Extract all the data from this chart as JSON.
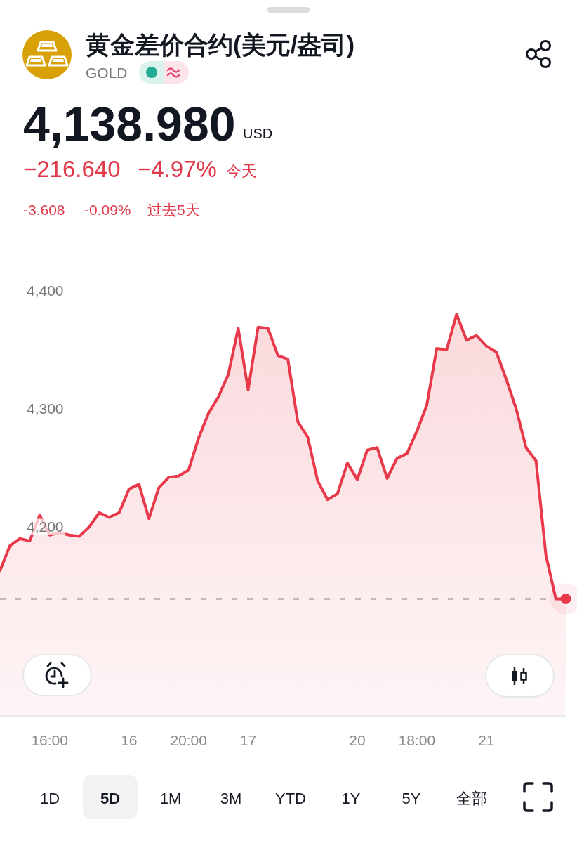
{
  "chart_data": {
    "type": "area",
    "title": "黄金差价合约(美元/盎司)",
    "subtitle": "GOLD",
    "annotations": [
      "4,138.980",
      "USD",
      "−216.640",
      "−4.97%",
      "今天",
      "-3.608",
      "-0.09%",
      "过去5天",
      "1D",
      "5D",
      "1M",
      "3M",
      "YTD",
      "1Y",
      "5Y",
      "全部"
    ],
    "categories": [
      null,
      null,
      null,
      null,
      null,
      "16:00",
      null,
      null,
      null,
      null,
      null,
      null,
      null,
      "16",
      null,
      null,
      null,
      null,
      null,
      "20:00",
      null,
      null,
      null,
      null,
      null,
      "17",
      null,
      null,
      null,
      null,
      null,
      null,
      null,
      null,
      null,
      null,
      "20",
      null,
      null,
      null,
      null,
      null,
      "18:00",
      null,
      null,
      null,
      null,
      null,
      null,
      "21",
      null,
      null,
      null,
      null,
      null,
      null,
      null,
      null
    ],
    "values": [
      4163,
      4184,
      4190,
      4188,
      4210,
      4193,
      4195,
      4193,
      4192,
      4200,
      4212,
      4208,
      4212,
      4232,
      4236,
      4207,
      4233,
      4242,
      4243,
      4248,
      4275,
      4296,
      4310,
      4329,
      4368,
      4316,
      4369,
      4368,
      4345,
      4342,
      4289,
      4276,
      4239,
      4223,
      4228,
      4254,
      4240,
      4265,
      4267,
      4241,
      4258,
      4262,
      4281,
      4303,
      4351,
      4350,
      4380,
      4358,
      4362,
      4353,
      4348,
      4325,
      4300,
      4267,
      4256,
      4176,
      4139,
      4139
    ],
    "color": "#e8394b",
    "ylim": [
      4040,
      4400
    ],
    "yticks": [
      {
        "value": 4200,
        "label": "4,200"
      },
      {
        "value": 4300,
        "label": "4,300"
      },
      {
        "value": 4400,
        "label": "4,400"
      }
    ],
    "ref_lines": [
      {
        "axis": "y",
        "value": 4139,
        "color": "#888888",
        "line_style": "dashed"
      }
    ]
  }
}
